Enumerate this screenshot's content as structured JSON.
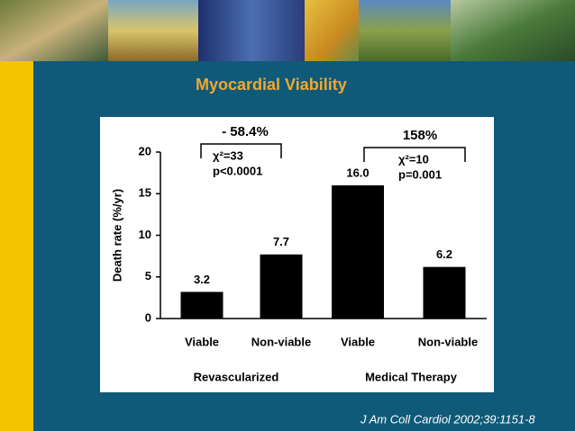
{
  "slide": {
    "title": "Myocardial Viability",
    "citation": "J Am Coll Cardiol 2002;39:1151-8"
  },
  "chart_data": {
    "type": "bar",
    "categories": [
      "Viable",
      "Non-viable",
      "Viable",
      "Non-viable"
    ],
    "values": [
      3.2,
      7.7,
      16.0,
      6.2
    ],
    "value_labels": [
      "3.2",
      "7.7",
      "16.0",
      "6.2"
    ],
    "color": "#000000",
    "ylabel": "Death rate (%/yr)",
    "ylim": [
      0,
      20
    ],
    "yticks": [
      0,
      5,
      10,
      15,
      20
    ],
    "groups": [
      "Revascularized",
      "Medical Therapy"
    ],
    "annotations": [
      {
        "change": "- 58.4%",
        "stat": "χ²=33",
        "p": "p<0.0001"
      },
      {
        "change": "158%",
        "stat": "χ²=10",
        "p": "p=0.001"
      }
    ]
  }
}
